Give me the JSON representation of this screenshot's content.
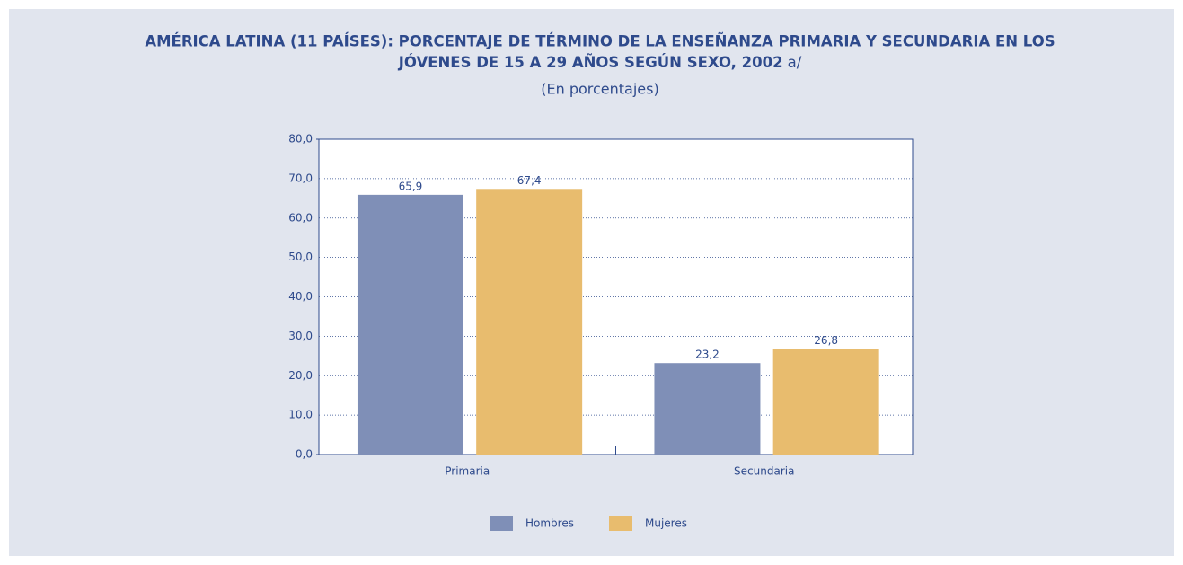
{
  "chart_data": {
    "type": "bar",
    "title": [
      "AMÉRICA LATINA (11 PAÍSES): PORCENTAJE DE TÉRMINO DE LA ENSEÑANZA PRIMARIA Y SECUNDARIA EN LOS",
      "JÓVENES DE 15 A 29 AÑOS SEGÚN SEXO, 2002"
    ],
    "title_note": "a/",
    "subtitle": "(En porcentajes)",
    "categories": [
      "Primaria",
      "Secundaria"
    ],
    "series": [
      {
        "name": "Hombres",
        "color": "#7f8fb7",
        "values": [
          65.9,
          23.2
        ],
        "value_labels": [
          "65,9",
          "23,2"
        ]
      },
      {
        "name": "Mujeres",
        "color": "#e8bc6e",
        "values": [
          67.4,
          26.8
        ],
        "value_labels": [
          "67,4",
          "26,8"
        ]
      }
    ],
    "ylim": [
      0,
      80
    ],
    "yticks": [
      {
        "value": 0,
        "label": "0,0"
      },
      {
        "value": 10,
        "label": "10,0"
      },
      {
        "value": 20,
        "label": "20,0"
      },
      {
        "value": 30,
        "label": "30,0"
      },
      {
        "value": 40,
        "label": "40,0"
      },
      {
        "value": 50,
        "label": "50,0"
      },
      {
        "value": 60,
        "label": "60,0"
      },
      {
        "value": 70,
        "label": "70,0"
      },
      {
        "value": 80,
        "label": "80,0"
      }
    ],
    "grid": true,
    "legend": "bottom"
  }
}
